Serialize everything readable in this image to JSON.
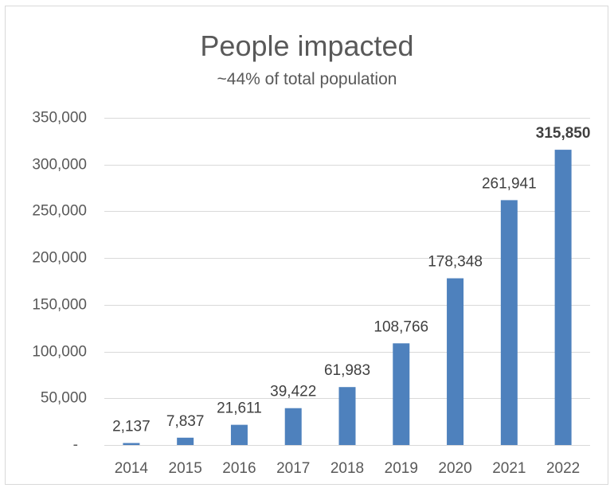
{
  "chart_data": {
    "type": "bar",
    "title": "People impacted",
    "subtitle": "~44% of total population",
    "categories": [
      "2014",
      "2015",
      "2016",
      "2017",
      "2018",
      "2019",
      "2020",
      "2021",
      "2022"
    ],
    "values": [
      2137,
      7837,
      21611,
      39422,
      61983,
      108766,
      178348,
      261941,
      315850
    ],
    "data_labels": [
      "2,137",
      "7,837",
      "21,611",
      "39,422",
      "61,983",
      "108,766",
      "178,348",
      "261,941",
      "315,850"
    ],
    "highlight_label_index": 8,
    "y_ticks": [
      0,
      50000,
      100000,
      150000,
      200000,
      250000,
      300000,
      350000
    ],
    "y_tick_labels": [
      "-",
      "50,000",
      "100,000",
      "150,000",
      "200,000",
      "250,000",
      "300,000",
      "350,000"
    ],
    "ylim": [
      0,
      350000
    ],
    "grid": true,
    "legend": "none",
    "xlabel": "",
    "ylabel": "",
    "colors": {
      "bar": "#4e81bd",
      "grid": "#d9d9d9",
      "text": "#595959",
      "frame": "#d9d9d9"
    }
  }
}
